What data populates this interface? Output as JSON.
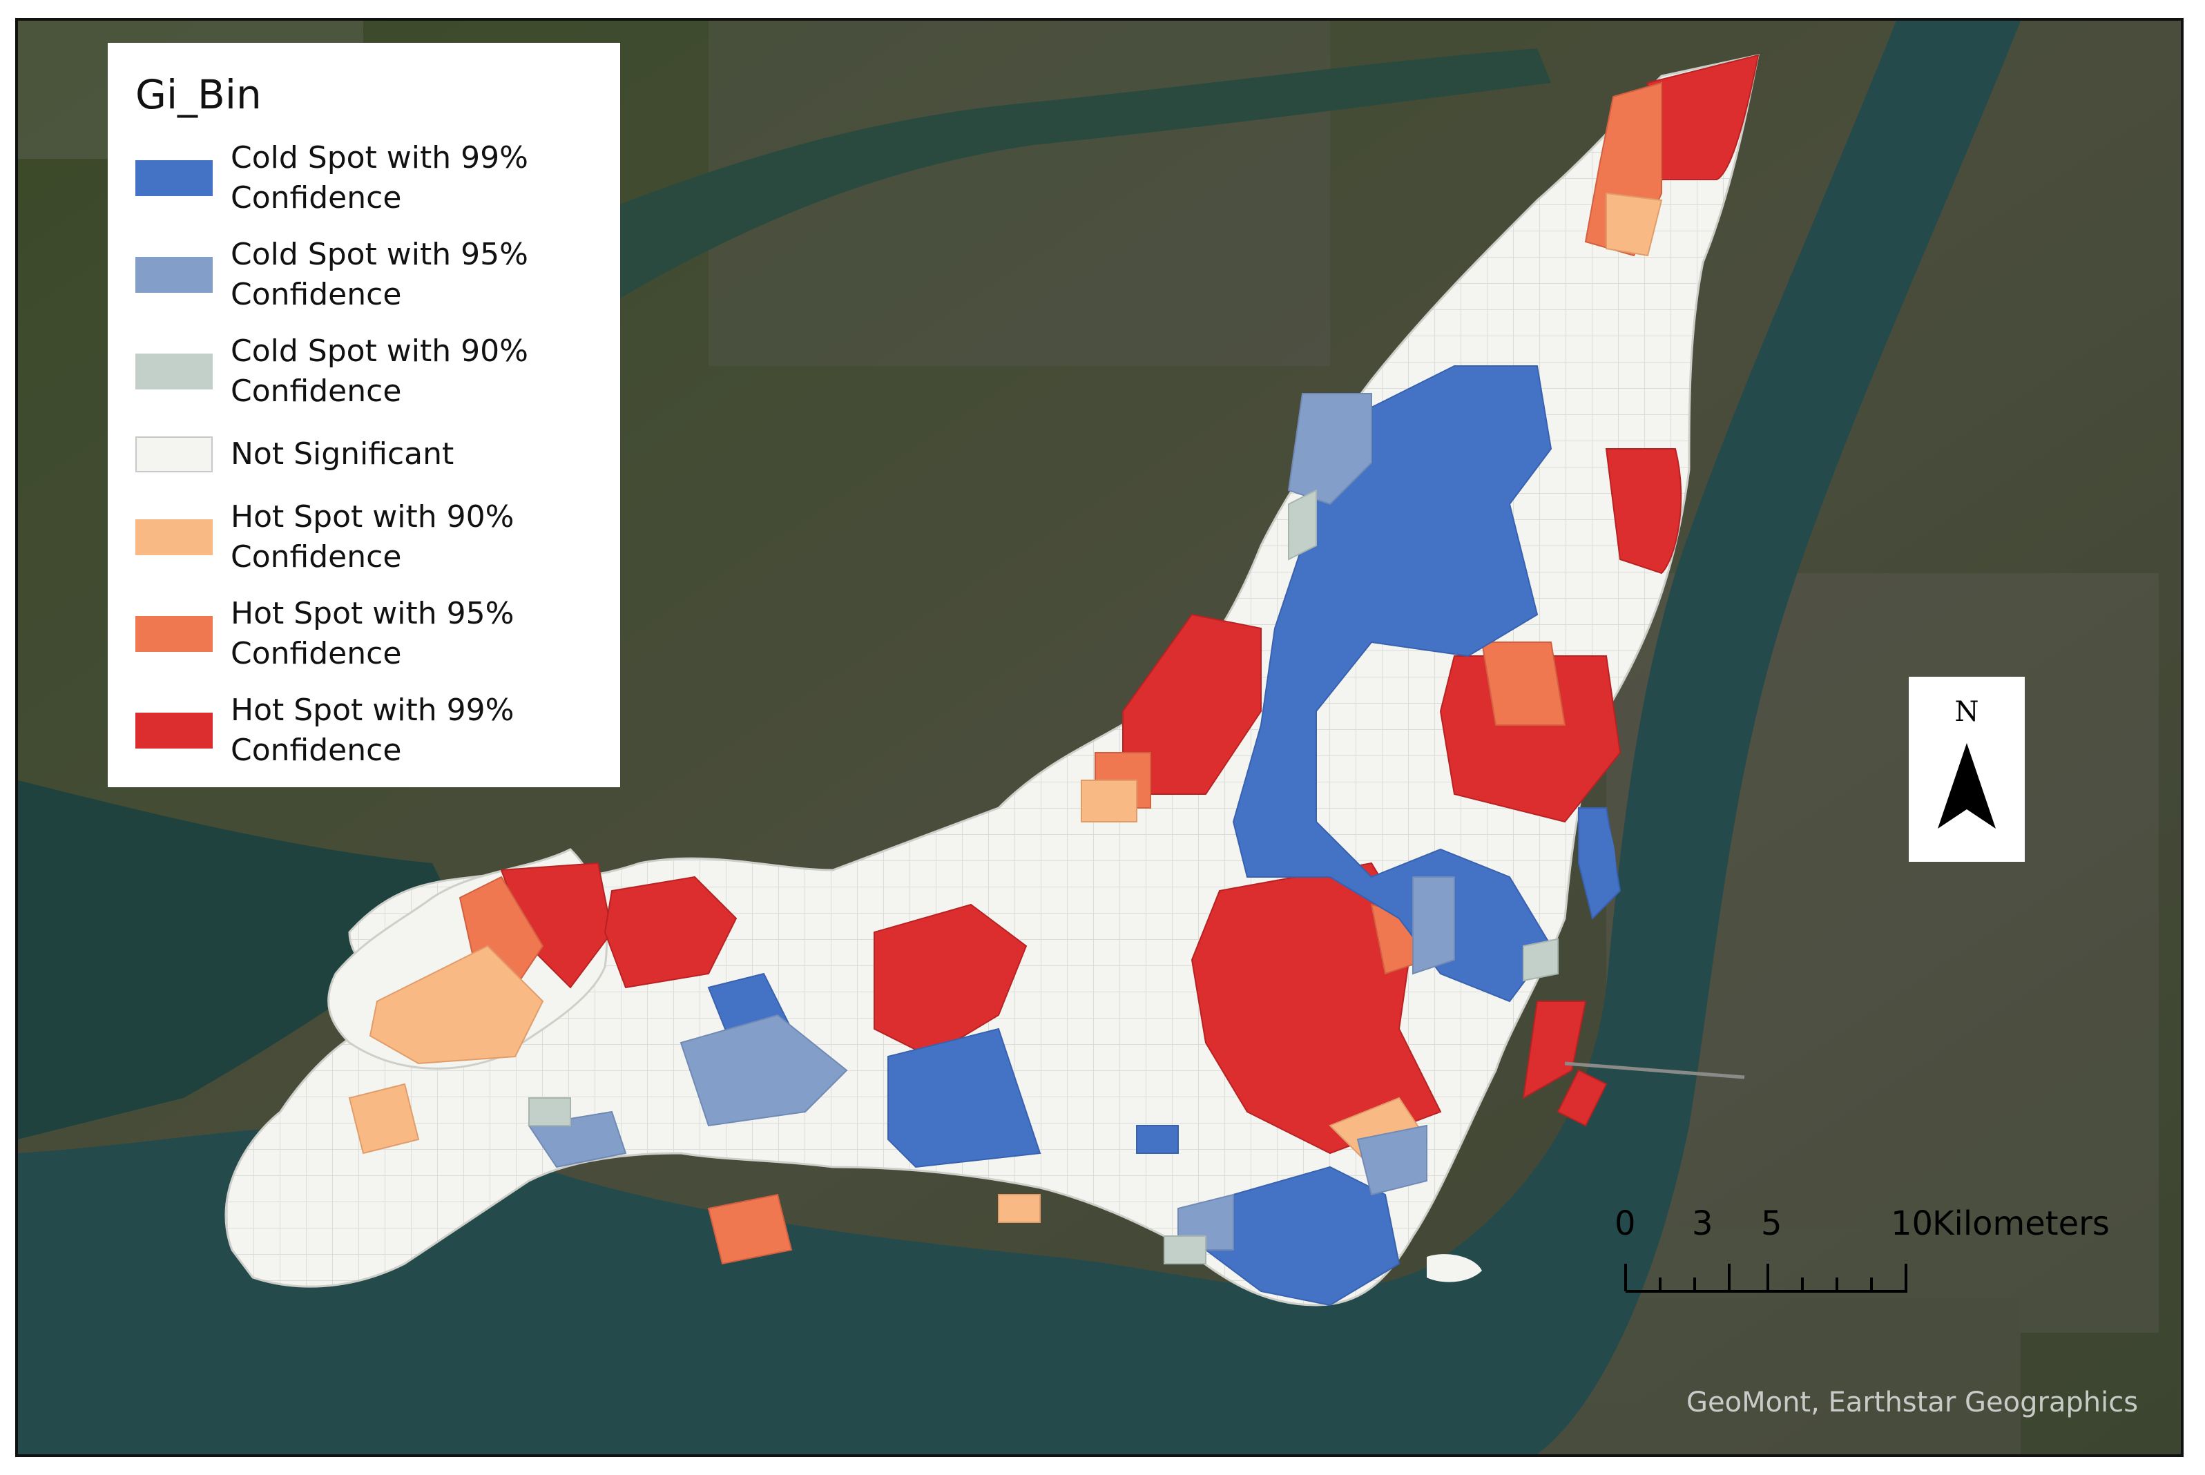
{
  "legend": {
    "title": "Gi_Bin",
    "items": [
      {
        "label": "Cold Spot with 99% Confidence",
        "color": "#4472c4"
      },
      {
        "label": "Cold Spot with 95% Confidence",
        "color": "#849eca"
      },
      {
        "label": "Cold Spot with 90% Confidence",
        "color": "#c3d0c9"
      },
      {
        "label": "Not Significant",
        "color": "#f4f4f0"
      },
      {
        "label": "Hot Spot with 90% Confidence",
        "color": "#f9b985"
      },
      {
        "label": "Hot Spot with 95% Confidence",
        "color": "#ef7851"
      },
      {
        "label": "Hot Spot with 99% Confidence",
        "color": "#dc2e2e"
      }
    ]
  },
  "north_arrow": {
    "label": "N"
  },
  "scale_bar": {
    "ticks": [
      "0",
      "3",
      "5",
      "10"
    ],
    "unit": "Kilometers"
  },
  "attribution": "GeoMont, Earthstar Geographics",
  "colors": {
    "land": "#3d4a2e",
    "water": "#244a4c",
    "not_significant": "#f4f4f0"
  }
}
